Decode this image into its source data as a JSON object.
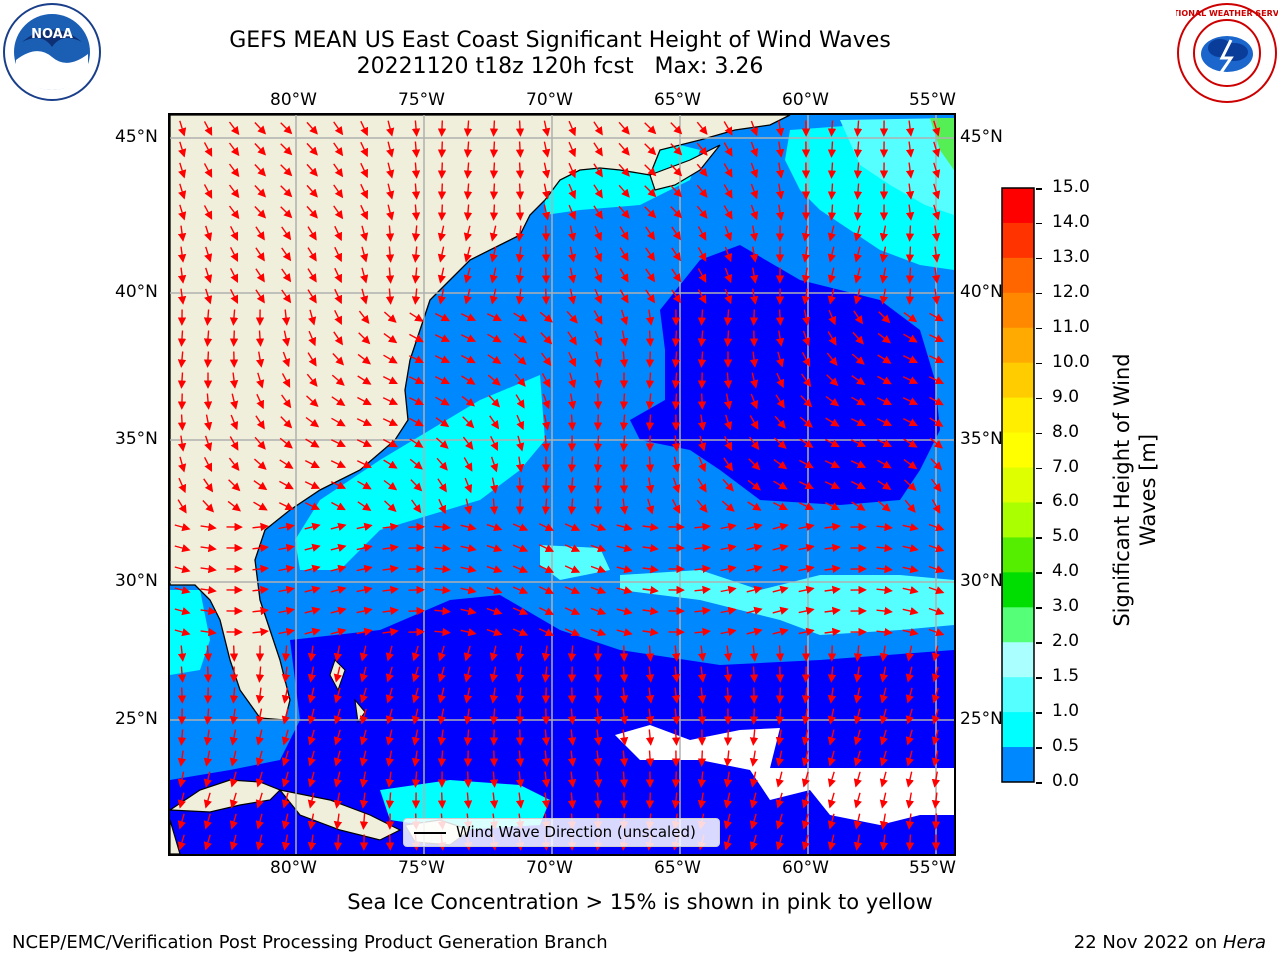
{
  "title": {
    "line1": "GEFS MEAN US East Coast Significant Height of Wind Waves",
    "line2": "20221120 t18z 120h fcst   Max: 3.26"
  },
  "logos": {
    "left": "NOAA",
    "right": "NATIONAL WEATHER SERVICE"
  },
  "map": {
    "lon_labels": [
      "80°W",
      "75°W",
      "70°W",
      "65°W",
      "60°W",
      "55°W"
    ],
    "lat_labels": [
      "45°N",
      "40°N",
      "35°N",
      "30°N",
      "25°N"
    ],
    "legend": "Wind Wave Direction (unscaled)",
    "arrow_color": "#ff0000"
  },
  "colorbar": {
    "label": "Significant Height of Wind Waves [m]",
    "ticks": [
      "15.0",
      "14.0",
      "13.0",
      "12.0",
      "11.0",
      "10.0",
      "9.0",
      "8.0",
      "7.0",
      "6.0",
      "5.0",
      "4.0",
      "3.0",
      "2.0",
      "1.5",
      "1.0",
      "0.5",
      "0.0"
    ],
    "colors": [
      "#ff0000",
      "#ff3300",
      "#ff6600",
      "#ff8800",
      "#ffaa00",
      "#ffcc00",
      "#ffee00",
      "#ffff00",
      "#ddff00",
      "#aaff00",
      "#55ee00",
      "#00dd00",
      "#55ff77",
      "#aaffff",
      "#55ffff",
      "#00ffff",
      "#0088ff",
      "#0000ff"
    ]
  },
  "subtitle": "Sea Ice Concentration > 15% is shown in pink to yellow",
  "footer": {
    "left": "NCEP/EMC/Verification Post Processing Product Generation Branch",
    "right_date": "22 Nov 2022 on ",
    "right_host": "Hera"
  }
}
